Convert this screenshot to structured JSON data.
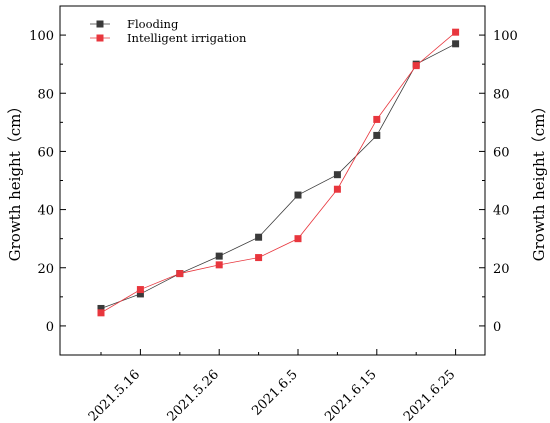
{
  "chart_data": {
    "type": "line",
    "x": [
      "2021.5.11",
      "2021.5.16",
      "2021.5.21",
      "2021.5.26",
      "2021.5.31",
      "2021.6.5",
      "2021.6.10",
      "2021.6.15",
      "2021.6.20",
      "2021.6.25"
    ],
    "x_tick_labels": [
      "2021.5.16",
      "2021.5.26",
      "2021.6.5",
      "2021.6.15",
      "2021.6.25"
    ],
    "series": [
      {
        "name": "Flooding",
        "color": "#3a3a3a",
        "values": [
          6,
          11,
          18,
          24,
          30.5,
          45,
          52,
          65.5,
          90,
          97
        ]
      },
      {
        "name": "Intelligent irrigation",
        "color": "#e8363d",
        "values": [
          4.5,
          12.5,
          18,
          21,
          23.5,
          30,
          47,
          71,
          89.5,
          101
        ]
      }
    ],
    "ylabel_left": "Growth height（cm）",
    "ylabel_right": "Growth height（cm）",
    "ylim": [
      -10,
      110
    ],
    "y_ticks": [
      0,
      20,
      40,
      60,
      80,
      100
    ],
    "grid": false,
    "legend_position": "top-left"
  }
}
